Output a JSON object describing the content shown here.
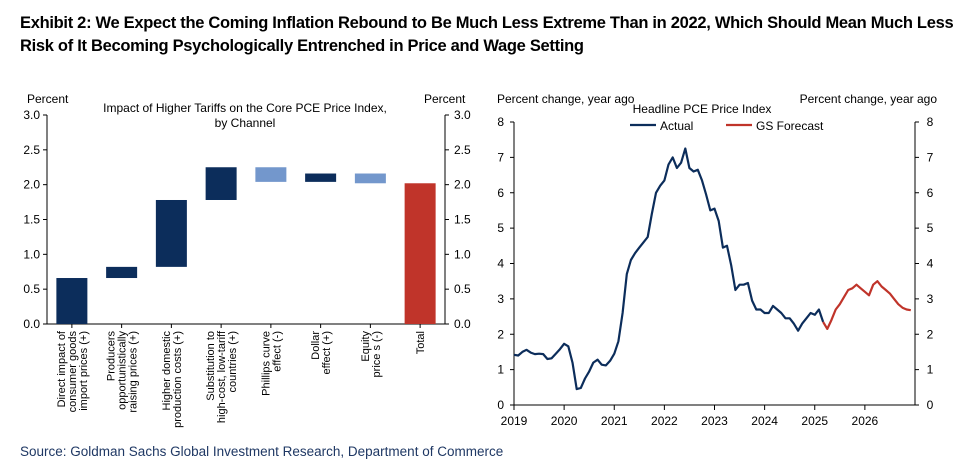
{
  "title": "Exhibit 2: We Expect the Coming Inflation Rebound to Be Much Less Extreme Than in 2022, Which Should Mean Much Less Risk of It Becoming Psychologically Entrenched in Price and Wage Setting",
  "source": "Source: Goldman Sachs Global Investment Research, Department of Commerce",
  "colors": {
    "dark_navy": "#0c2d5b",
    "light_blue": "#7397cc",
    "red": "#c0342a",
    "title": "#000000",
    "source": "#1f3864"
  },
  "chart_data": [
    {
      "type": "bar",
      "subtype": "waterfall",
      "title": "Impact of Higher Tariffs on the Core PCE Price Index,",
      "title_line2": "by Channel",
      "ylabel_left": "Percent",
      "ylabel_right": "Percent",
      "ylim": [
        0,
        3
      ],
      "yticks": [
        "0.0",
        "0.5",
        "1.0",
        "1.5",
        "2.0",
        "2.5",
        "3.0"
      ],
      "ytick_values": [
        0,
        0.5,
        1,
        1.5,
        2,
        2.5,
        3
      ],
      "grid": false,
      "categories": [
        [
          "Direct impact of",
          "consumer goods",
          "import prices (+)"
        ],
        [
          "Producers",
          "opportunistically",
          "raising prices (+)"
        ],
        [
          "Higher domestic",
          "production costs (+)"
        ],
        [
          "Substitution to",
          "high-cost, low-tariff",
          "countries (+)"
        ],
        [
          "Phillips curve",
          "effect (-)"
        ],
        [
          "Dollar",
          "effect (+)"
        ],
        [
          "Equity",
          "price s (-)"
        ],
        [
          "Total"
        ]
      ],
      "bars": [
        {
          "start": 0.0,
          "end": 0.66,
          "color": "dark_navy"
        },
        {
          "start": 0.66,
          "end": 0.82,
          "color": "dark_navy"
        },
        {
          "start": 0.82,
          "end": 1.78,
          "color": "dark_navy"
        },
        {
          "start": 1.78,
          "end": 2.25,
          "color": "dark_navy"
        },
        {
          "start": 2.25,
          "end": 2.04,
          "color": "light_blue"
        },
        {
          "start": 2.04,
          "end": 2.16,
          "color": "dark_navy"
        },
        {
          "start": 2.16,
          "end": 2.02,
          "color": "light_blue"
        },
        {
          "start": 0.0,
          "end": 2.02,
          "color": "red"
        }
      ]
    },
    {
      "type": "line",
      "title": "Headline  PCE Price Index",
      "ylabel_left": "Percent change, year ago",
      "ylabel_right": "Percent change, year ago",
      "ylim": [
        0,
        8
      ],
      "yticks": [
        "0",
        "1",
        "2",
        "3",
        "4",
        "5",
        "6",
        "7",
        "8"
      ],
      "xlim": [
        2019.0,
        2027.0
      ],
      "xticks": [
        "2019",
        "2020",
        "2021",
        "2022",
        "2023",
        "2024",
        "2025",
        "2026"
      ],
      "xtick_values": [
        2019,
        2020,
        2021,
        2022,
        2023,
        2024,
        2025,
        2026
      ],
      "legend_placement": "top-center",
      "grid": false,
      "series": [
        {
          "name": "Actual",
          "color": "dark_navy",
          "points": [
            [
              2019.0,
              1.42
            ],
            [
              2019.083,
              1.4
            ],
            [
              2019.167,
              1.5
            ],
            [
              2019.25,
              1.56
            ],
            [
              2019.333,
              1.48
            ],
            [
              2019.417,
              1.44
            ],
            [
              2019.5,
              1.45
            ],
            [
              2019.583,
              1.44
            ],
            [
              2019.667,
              1.3
            ],
            [
              2019.75,
              1.32
            ],
            [
              2019.833,
              1.45
            ],
            [
              2019.917,
              1.58
            ],
            [
              2020.0,
              1.73
            ],
            [
              2020.083,
              1.66
            ],
            [
              2020.167,
              1.2
            ],
            [
              2020.25,
              0.45
            ],
            [
              2020.333,
              0.48
            ],
            [
              2020.417,
              0.75
            ],
            [
              2020.5,
              0.95
            ],
            [
              2020.583,
              1.2
            ],
            [
              2020.667,
              1.28
            ],
            [
              2020.75,
              1.14
            ],
            [
              2020.833,
              1.12
            ],
            [
              2020.917,
              1.25
            ],
            [
              2021.0,
              1.45
            ],
            [
              2021.083,
              1.8
            ],
            [
              2021.167,
              2.6
            ],
            [
              2021.25,
              3.7
            ],
            [
              2021.333,
              4.1
            ],
            [
              2021.417,
              4.3
            ],
            [
              2021.5,
              4.45
            ],
            [
              2021.583,
              4.6
            ],
            [
              2021.667,
              4.75
            ],
            [
              2021.75,
              5.4
            ],
            [
              2021.833,
              6.0
            ],
            [
              2021.917,
              6.2
            ],
            [
              2022.0,
              6.35
            ],
            [
              2022.083,
              6.8
            ],
            [
              2022.167,
              7.0
            ],
            [
              2022.25,
              6.7
            ],
            [
              2022.333,
              6.85
            ],
            [
              2022.417,
              7.25
            ],
            [
              2022.5,
              6.7
            ],
            [
              2022.583,
              6.6
            ],
            [
              2022.667,
              6.65
            ],
            [
              2022.75,
              6.35
            ],
            [
              2022.833,
              5.95
            ],
            [
              2022.917,
              5.5
            ],
            [
              2023.0,
              5.55
            ],
            [
              2023.083,
              5.2
            ],
            [
              2023.167,
              4.45
            ],
            [
              2023.25,
              4.5
            ],
            [
              2023.333,
              3.95
            ],
            [
              2023.417,
              3.25
            ],
            [
              2023.5,
              3.4
            ],
            [
              2023.583,
              3.4
            ],
            [
              2023.667,
              3.45
            ],
            [
              2023.75,
              2.95
            ],
            [
              2023.833,
              2.7
            ],
            [
              2023.917,
              2.7
            ],
            [
              2024.0,
              2.6
            ],
            [
              2024.083,
              2.6
            ],
            [
              2024.167,
              2.8
            ],
            [
              2024.25,
              2.7
            ],
            [
              2024.333,
              2.6
            ],
            [
              2024.417,
              2.45
            ],
            [
              2024.5,
              2.45
            ],
            [
              2024.583,
              2.3
            ],
            [
              2024.667,
              2.1
            ],
            [
              2024.75,
              2.3
            ],
            [
              2024.833,
              2.45
            ],
            [
              2024.917,
              2.6
            ],
            [
              2025.0,
              2.55
            ],
            [
              2025.083,
              2.7
            ],
            [
              2025.167,
              2.35
            ]
          ]
        },
        {
          "name": "GS Forecast",
          "color": "red",
          "points": [
            [
              2025.167,
              2.35
            ],
            [
              2025.25,
              2.15
            ],
            [
              2025.333,
              2.4
            ],
            [
              2025.417,
              2.7
            ],
            [
              2025.5,
              2.85
            ],
            [
              2025.583,
              3.05
            ],
            [
              2025.667,
              3.25
            ],
            [
              2025.75,
              3.3
            ],
            [
              2025.833,
              3.4
            ],
            [
              2025.917,
              3.3
            ],
            [
              2026.0,
              3.2
            ],
            [
              2026.083,
              3.1
            ],
            [
              2026.167,
              3.4
            ],
            [
              2026.25,
              3.5
            ],
            [
              2026.333,
              3.35
            ],
            [
              2026.417,
              3.25
            ],
            [
              2026.5,
              3.15
            ],
            [
              2026.583,
              3.0
            ],
            [
              2026.667,
              2.85
            ],
            [
              2026.75,
              2.75
            ],
            [
              2026.833,
              2.7
            ],
            [
              2026.917,
              2.68
            ]
          ]
        }
      ]
    }
  ]
}
